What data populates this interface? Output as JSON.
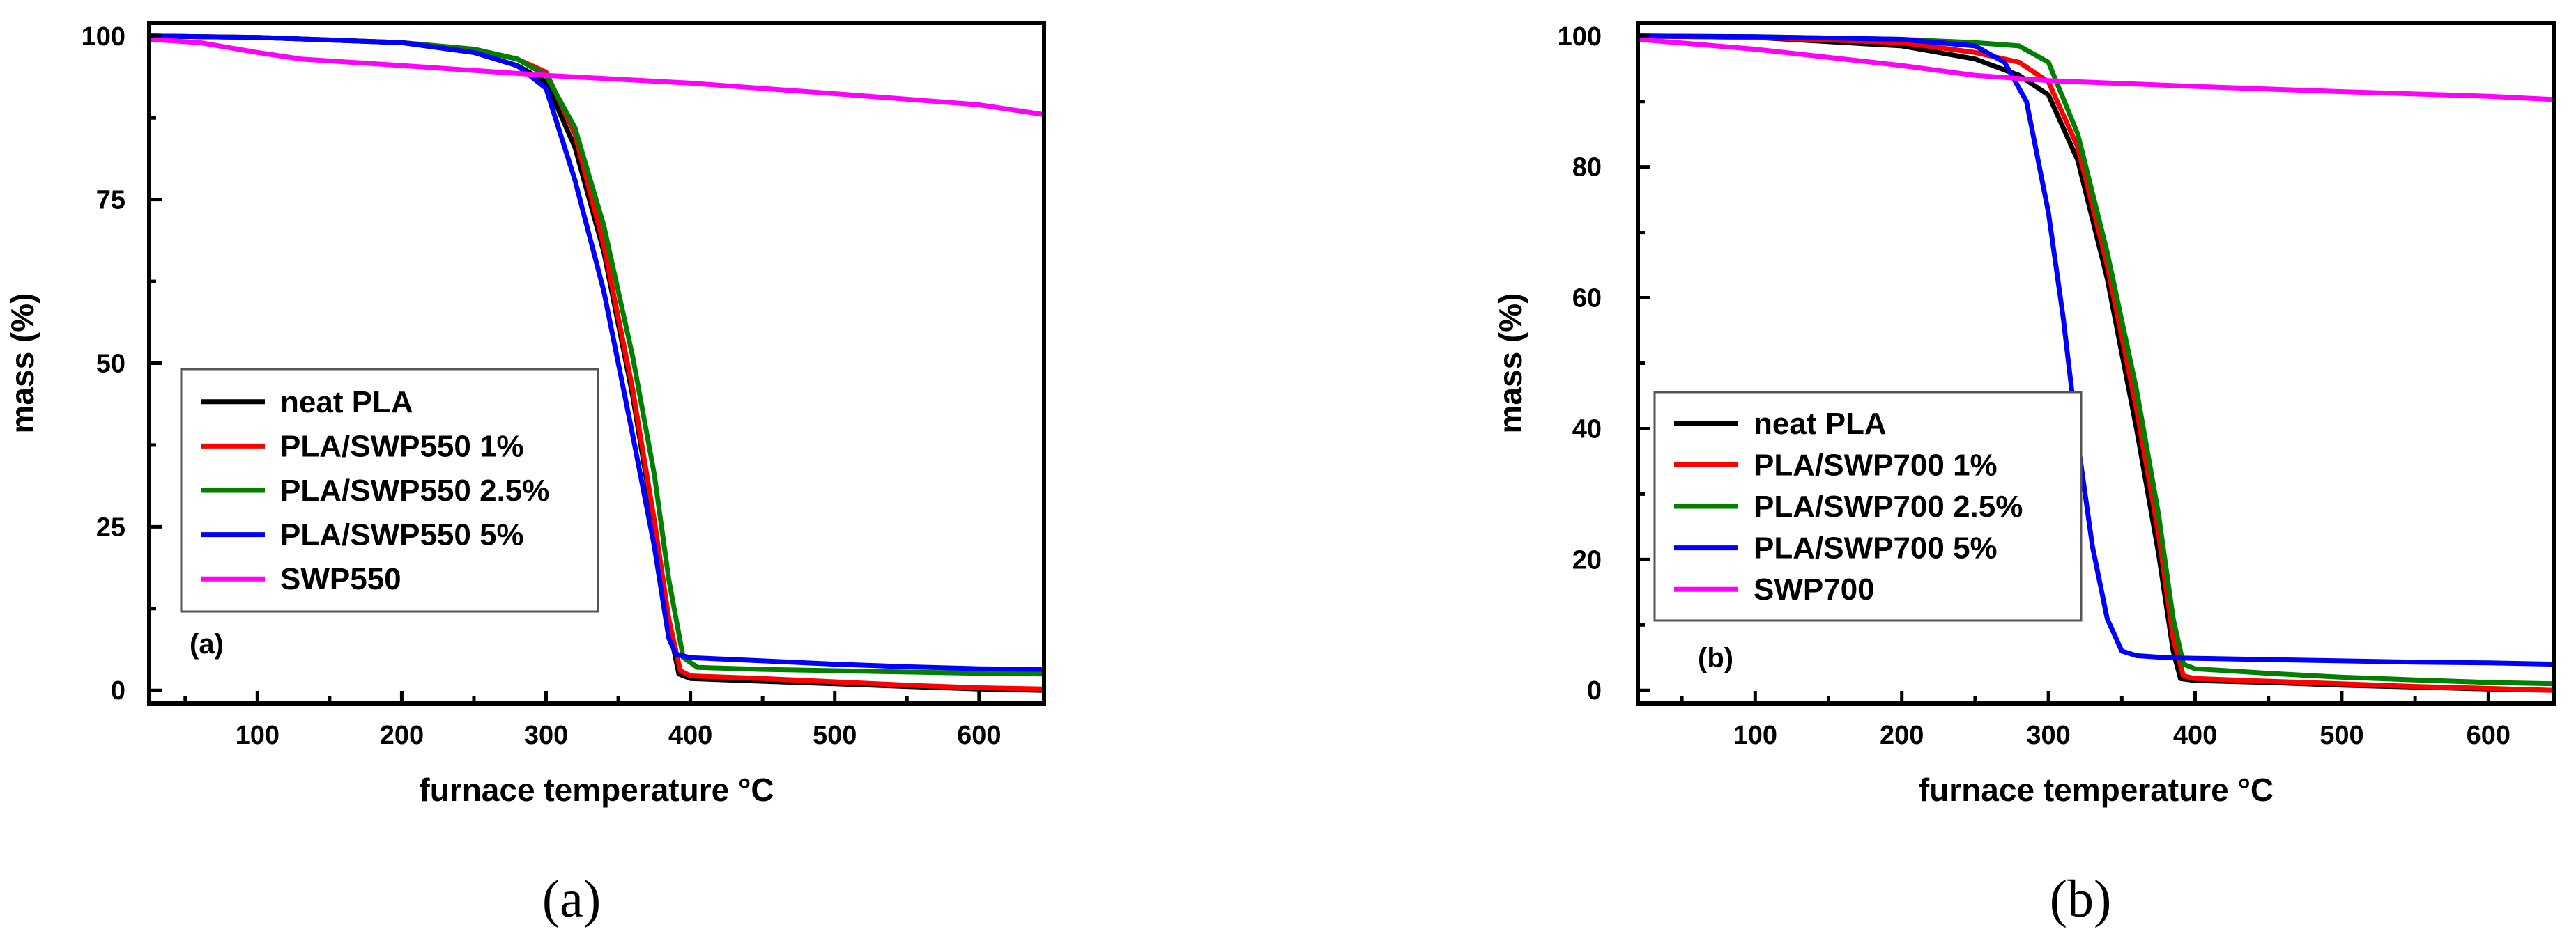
{
  "chart_data": [
    {
      "type": "line",
      "panel_tag": "(a)",
      "caption": "(a)",
      "xlabel": "furnace temperature °C",
      "ylabel": "mass (%)",
      "xlim": [
        25,
        645
      ],
      "ylim": [
        -2,
        102
      ],
      "xticks": [
        100,
        200,
        300,
        400,
        500,
        600
      ],
      "yticks": [
        0,
        25,
        50,
        75,
        100
      ],
      "grid": false,
      "legend_position": "lower-left",
      "series": [
        {
          "name": "neat PLA",
          "color": "#000000",
          "x": [
            25,
            100,
            200,
            250,
            280,
            300,
            320,
            340,
            360,
            375,
            385,
            392,
            400,
            450,
            500,
            550,
            600,
            645
          ],
          "y": [
            100,
            99.8,
            99,
            97.5,
            95.5,
            93,
            83,
            67,
            45,
            25,
            10,
            2.5,
            1.8,
            1.4,
            1.0,
            0.6,
            0.2,
            0
          ]
        },
        {
          "name": "PLA/SWP550 1%",
          "color": "#ff0000",
          "x": [
            25,
            100,
            200,
            250,
            280,
            300,
            320,
            340,
            360,
            375,
            385,
            393,
            400,
            450,
            500,
            550,
            600,
            645
          ],
          "y": [
            100,
            99.8,
            99,
            98,
            96.5,
            94.5,
            85,
            68,
            46,
            26,
            11,
            3,
            2.2,
            1.8,
            1.3,
            0.8,
            0.4,
            0.2
          ]
        },
        {
          "name": "PLA/SWP550 2.5%",
          "color": "#008000",
          "x": [
            25,
            100,
            200,
            250,
            280,
            300,
            320,
            340,
            360,
            375,
            385,
            395,
            405,
            450,
            500,
            550,
            600,
            645
          ],
          "y": [
            100,
            99.8,
            99,
            98,
            96.5,
            94,
            86,
            71,
            51,
            33,
            17,
            5,
            3.5,
            3.2,
            3.0,
            2.8,
            2.6,
            2.5
          ]
        },
        {
          "name": "PLA/SWP550 5%",
          "color": "#0000ff",
          "x": [
            25,
            100,
            200,
            250,
            280,
            300,
            320,
            340,
            360,
            375,
            385,
            390,
            400,
            450,
            500,
            550,
            600,
            645
          ],
          "y": [
            100,
            99.8,
            99,
            97.5,
            95.5,
            92,
            78,
            61,
            39,
            22,
            8,
            5.5,
            5.0,
            4.5,
            4.0,
            3.6,
            3.3,
            3.2
          ]
        },
        {
          "name": "SWP550",
          "color": "#ff00ff",
          "x": [
            25,
            60,
            100,
            130,
            200,
            300,
            400,
            500,
            600,
            645
          ],
          "y": [
            99.5,
            99,
            97.5,
            96.5,
            95.5,
            94,
            92.8,
            91.2,
            89.5,
            88
          ]
        }
      ]
    },
    {
      "type": "line",
      "panel_tag": "(b)",
      "caption": "(b)",
      "xlabel": "furnace temperature °C",
      "ylabel": "mass (%)",
      "xlim": [
        20,
        645
      ],
      "ylim": [
        -2,
        102
      ],
      "xticks": [
        100,
        200,
        300,
        400,
        500,
        600
      ],
      "yticks": [
        0,
        20,
        40,
        60,
        80,
        100
      ],
      "grid": false,
      "legend_position": "lower-left",
      "series": [
        {
          "name": "neat PLA",
          "color": "#000000",
          "x": [
            20,
            100,
            200,
            250,
            280,
            300,
            320,
            340,
            360,
            375,
            385,
            390,
            400,
            450,
            500,
            550,
            600,
            645
          ],
          "y": [
            100,
            99.8,
            98.5,
            96.5,
            94,
            91,
            81,
            63,
            40,
            21,
            6,
            1.8,
            1.5,
            1.2,
            0.8,
            0.5,
            0.2,
            0
          ]
        },
        {
          "name": "PLA/SWP700 1%",
          "color": "#ff0000",
          "x": [
            20,
            100,
            200,
            250,
            280,
            300,
            320,
            340,
            360,
            375,
            385,
            392,
            400,
            450,
            500,
            550,
            600,
            645
          ],
          "y": [
            100,
            99.8,
            99,
            97.5,
            96,
            93,
            83,
            65,
            43,
            24,
            8,
            2.2,
            1.8,
            1.4,
            1.0,
            0.6,
            0.3,
            0
          ]
        },
        {
          "name": "PLA/SWP700 2.5%",
          "color": "#008000",
          "x": [
            20,
            100,
            200,
            250,
            280,
            300,
            320,
            340,
            360,
            375,
            385,
            392,
            400,
            450,
            500,
            550,
            600,
            645
          ],
          "y": [
            100,
            99.9,
            99.5,
            99,
            98.5,
            96,
            85,
            67,
            46,
            27,
            11,
            4,
            3.3,
            2.6,
            2.0,
            1.6,
            1.2,
            1.0
          ]
        },
        {
          "name": "PLA/SWP700 5%",
          "color": "#0000ff",
          "x": [
            20,
            100,
            200,
            250,
            270,
            285,
            300,
            310,
            320,
            330,
            340,
            350,
            360,
            380,
            400,
            450,
            500,
            550,
            600,
            645
          ],
          "y": [
            100,
            99.9,
            99.5,
            98.5,
            96,
            90,
            73,
            57,
            38,
            22,
            11,
            6,
            5.3,
            5.0,
            4.9,
            4.7,
            4.5,
            4.3,
            4.2,
            4.0
          ]
        },
        {
          "name": "SWP700",
          "color": "#ff00ff",
          "x": [
            20,
            100,
            200,
            250,
            300,
            400,
            500,
            600,
            645
          ],
          "y": [
            99.5,
            98,
            95.5,
            94,
            93.2,
            92.3,
            91.5,
            90.8,
            90.3
          ]
        }
      ]
    }
  ]
}
